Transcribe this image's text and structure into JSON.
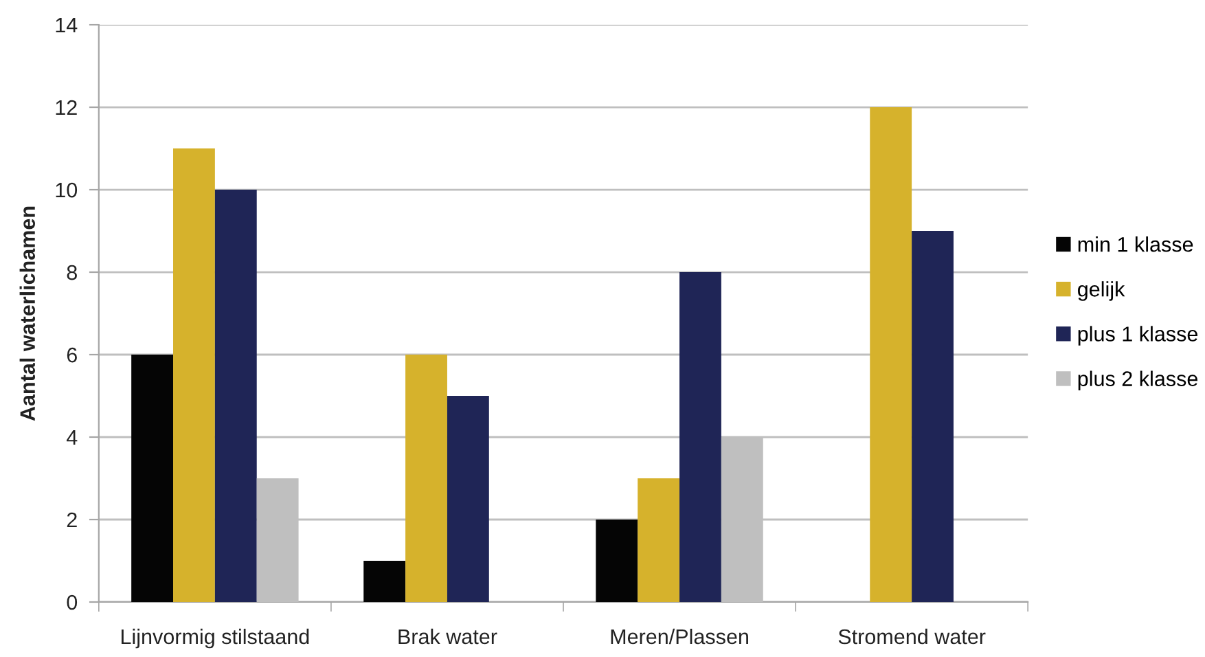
{
  "chart_data": {
    "type": "bar",
    "ylabel": "Aantal waterlichamen",
    "categories": [
      "Lijnvormig stilstaand",
      "Brak water",
      "Meren/Plassen",
      "Stromend water"
    ],
    "series": [
      {
        "name": "min 1 klasse",
        "color": "#050505",
        "values": [
          6,
          1,
          2,
          0
        ]
      },
      {
        "name": "gelijk",
        "color": "#d6b22c",
        "values": [
          11,
          6,
          3,
          12
        ]
      },
      {
        "name": "plus 1 klasse",
        "color": "#1f2556",
        "values": [
          10,
          5,
          8,
          9
        ]
      },
      {
        "name": "plus 2 klasse",
        "color": "#bfbfbf",
        "values": [
          3,
          0,
          4,
          0
        ]
      }
    ],
    "ylim": [
      0,
      14
    ],
    "yticks": [
      0,
      2,
      4,
      6,
      8,
      10,
      12,
      14
    ],
    "grid": "y",
    "legend": "right"
  }
}
